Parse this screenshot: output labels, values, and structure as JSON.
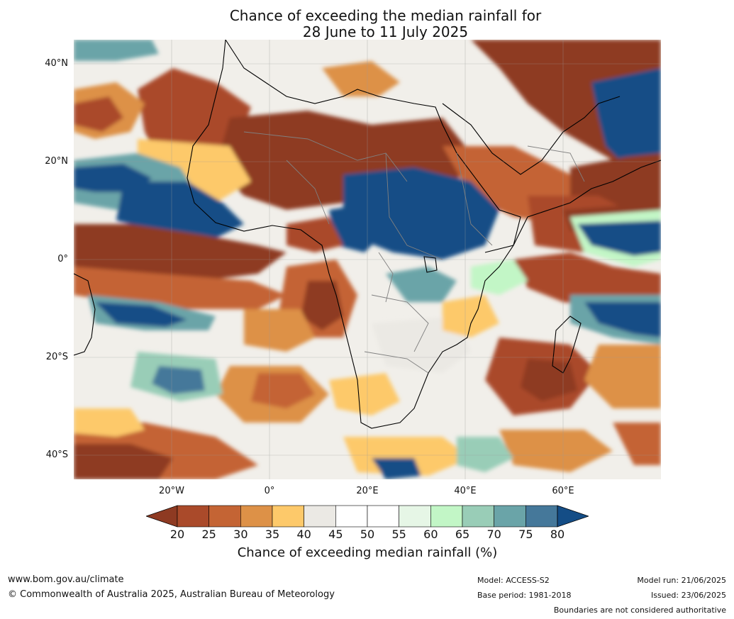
{
  "title": {
    "line1": "Chance of exceeding the median rainfall for",
    "line2": "28 June to 11 July 2025"
  },
  "map": {
    "lat_labels": [
      "40°N",
      "20°N",
      "0°",
      "20°S",
      "40°S"
    ],
    "lon_labels": [
      "20°W",
      "0°",
      "20°E",
      "40°E",
      "60°E"
    ]
  },
  "colorbar": {
    "title": "Chance of exceeding median rainfall (%)",
    "ticks": [
      "20",
      "25",
      "30",
      "35",
      "40",
      "45",
      "50",
      "55",
      "60",
      "65",
      "70",
      "75",
      "80"
    ],
    "colors": [
      "#8e3a22",
      "#aa4a2a",
      "#c46434",
      "#dd9147",
      "#fdc96a",
      "#ebe9e4",
      "#ffffff",
      "#ffffff",
      "#e6f6e6",
      "#c2f6c6",
      "#99cdb7",
      "#6aa4a8",
      "#45789a",
      "#144d86"
    ]
  },
  "footer": {
    "website": "www.bom.gov.au/climate",
    "copyright": "© Commonwealth of Australia 2025, Australian Bureau of Meteorology",
    "model": "Model: ACCESS-S2",
    "base_period": "Base period: 1981-2018",
    "model_run": "Model run: 21/06/2025",
    "issued": "Issued: 23/06/2025",
    "boundaries": "Boundaries are not considered authoritative"
  }
}
